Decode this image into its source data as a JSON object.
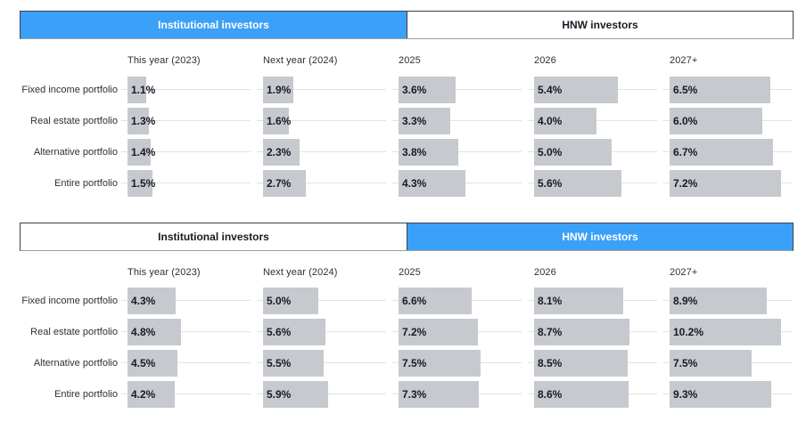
{
  "colors": {
    "accent_blue": "#3ba0f7",
    "bar_fill": "#c6c9ce",
    "track_line": "#e3e3e6",
    "tab_border": "#3f3f4d",
    "text_dark": "#1a1a24",
    "active_tab_text": "#ffffff"
  },
  "panels": [
    {
      "tabs": [
        {
          "label": "Institutional investors",
          "active": true
        },
        {
          "label": "HNW investors",
          "active": false
        }
      ]
    },
    {
      "tabs": [
        {
          "label": "Institutional investors",
          "active": false
        },
        {
          "label": "HNW investors",
          "active": true
        }
      ]
    }
  ],
  "chart_data": [
    {
      "type": "bar",
      "title": "Institutional investors",
      "orientation": "horizontal",
      "unit": "%",
      "legend_position": "none",
      "grid": "off",
      "columns": [
        "This year (2023)",
        "Next year (2024)",
        "2025",
        "2026",
        "2027+"
      ],
      "rows": [
        "Fixed income portfolio",
        "Real estate portfolio",
        "Alternative portfolio",
        "Entire portfolio"
      ],
      "series": [
        {
          "name": "Fixed income portfolio",
          "values": [
            1.1,
            1.9,
            3.6,
            5.4,
            6.5
          ],
          "labels": [
            "1.1%",
            "1.9%",
            "3.6%",
            "5.4%",
            "6.5%"
          ]
        },
        {
          "name": "Real estate portfolio",
          "values": [
            1.3,
            1.6,
            3.3,
            4.0,
            6.0
          ],
          "labels": [
            "1.3%",
            "1.6%",
            "3.3%",
            "4.0%",
            "6.0%"
          ]
        },
        {
          "name": "Alternative portfolio",
          "values": [
            1.4,
            2.3,
            3.8,
            5.0,
            6.7
          ],
          "labels": [
            "1.4%",
            "2.3%",
            "3.8%",
            "5.0%",
            "6.7%"
          ]
        },
        {
          "name": "Entire portfolio",
          "values": [
            1.5,
            2.7,
            4.3,
            5.6,
            7.2
          ],
          "labels": [
            "1.5%",
            "2.7%",
            "4.3%",
            "5.6%",
            "7.2%"
          ]
        }
      ],
      "xlim": [
        0,
        7.2
      ]
    },
    {
      "type": "bar",
      "title": "HNW investors",
      "orientation": "horizontal",
      "unit": "%",
      "legend_position": "none",
      "grid": "off",
      "columns": [
        "This year (2023)",
        "Next year (2024)",
        "2025",
        "2026",
        "2027+"
      ],
      "rows": [
        "Fixed income portfolio",
        "Real estate portfolio",
        "Alternative portfolio",
        "Entire portfolio"
      ],
      "series": [
        {
          "name": "Fixed income portfolio",
          "values": [
            4.3,
            5.0,
            6.6,
            8.1,
            8.9
          ],
          "labels": [
            "4.3%",
            "5.0%",
            "6.6%",
            "8.1%",
            "8.9%"
          ]
        },
        {
          "name": "Real estate portfolio",
          "values": [
            4.8,
            5.6,
            7.2,
            8.7,
            10.2
          ],
          "labels": [
            "4.8%",
            "5.6%",
            "7.2%",
            "8.7%",
            "10.2%"
          ]
        },
        {
          "name": "Alternative portfolio",
          "values": [
            4.5,
            5.5,
            7.5,
            8.5,
            7.5
          ],
          "labels": [
            "4.5%",
            "5.5%",
            "7.5%",
            "8.5%",
            "7.5%"
          ]
        },
        {
          "name": "Entire portfolio",
          "values": [
            4.2,
            5.9,
            7.3,
            8.6,
            9.3
          ],
          "labels": [
            "4.2%",
            "5.9%",
            "7.3%",
            "8.6%",
            "9.3%"
          ]
        }
      ],
      "xlim": [
        0,
        10.2
      ]
    }
  ]
}
